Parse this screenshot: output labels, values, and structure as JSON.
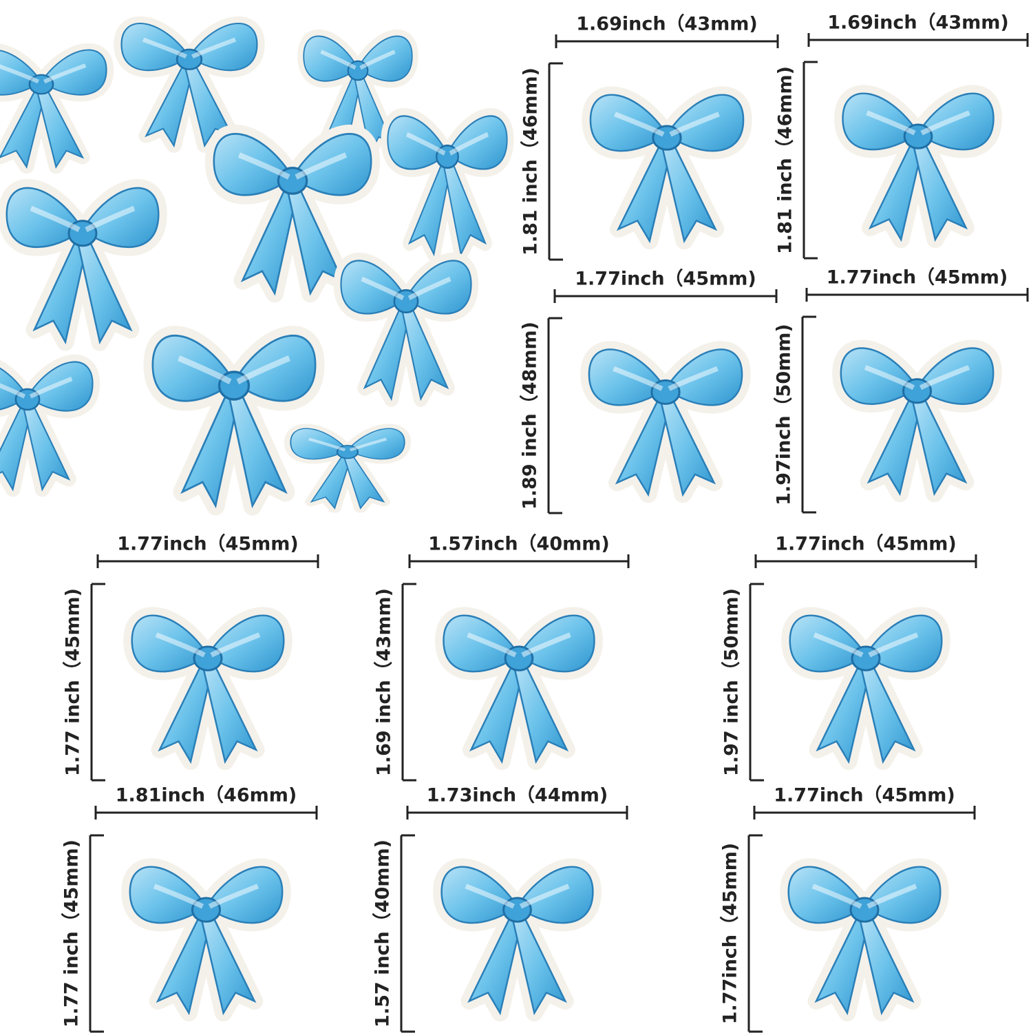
{
  "items": [
    {
      "width": "1.69inch（43mm)",
      "height": "1.81 inch（46mm)"
    },
    {
      "width": "1.69inch（43mm)",
      "height": "1.81 inch（46mm)"
    },
    {
      "width": "1.77inch（45mm)",
      "height": "1.89 inch（48mm)"
    },
    {
      "width": "1.77inch（45mm)",
      "height": "1.97inch（50mm)"
    },
    {
      "width": "1.77inch（45mm)",
      "height": "1.77 inch（45mm)"
    },
    {
      "width": "1.57inch（40mm)",
      "height": "1.69 inch（43mm)"
    },
    {
      "width": "1.77inch（45mm)",
      "height": "1.97 inch（50mm)"
    },
    {
      "width": "1.81inch（46mm)",
      "height": "1.77 inch（45mm)"
    },
    {
      "width": "1.73inch（44mm)",
      "height": "1.57 inch（40mm)"
    },
    {
      "width": "1.77inch（45mm)",
      "height": "1.77inch（45mm)"
    }
  ]
}
